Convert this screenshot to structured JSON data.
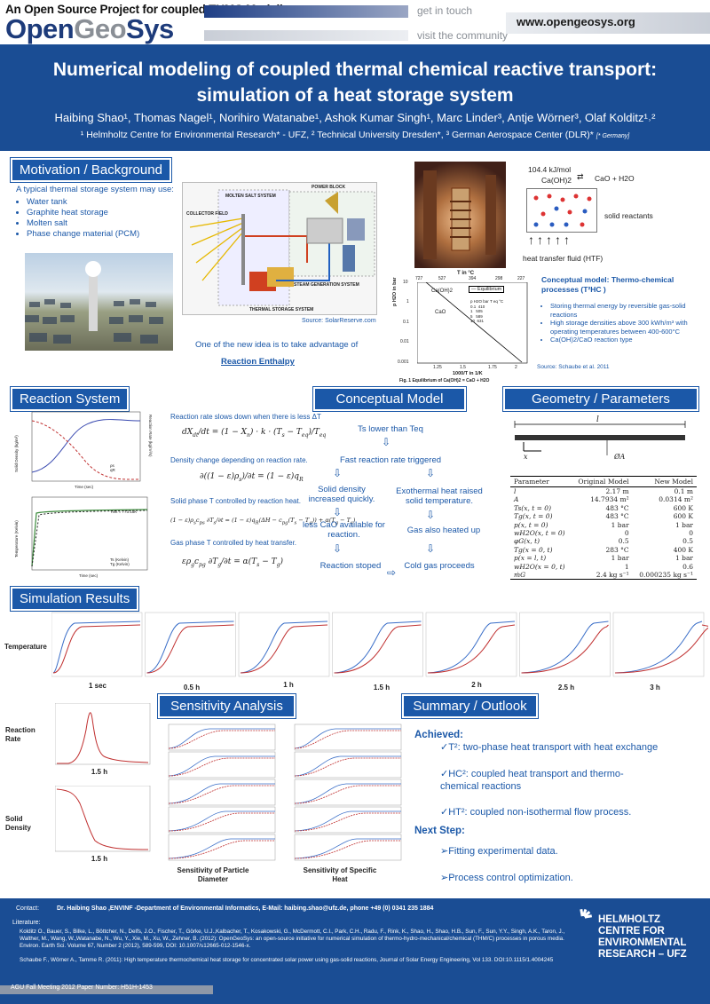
{
  "header": {
    "project": "An Open Source Project for coupled THMC Modeling",
    "logo_open": "Open",
    "logo_geo": "Geo",
    "logo_sys": "Sys",
    "get_in_touch": "get in touch",
    "visit": "visit the community",
    "url": "www.opengeosys.org"
  },
  "title": {
    "line1": "Numerical modeling of coupled thermal chemical reactive transport:",
    "line2": "simulation of  a heat storage system"
  },
  "authors": "Haibing Shao¹, Thomas Nagel¹, Norihiro Watanabe¹, Ashok Kumar Singh¹, Marc Linder³, Antje Wörner³, Olaf Kolditz¹˒²",
  "affiliations": "¹ Helmholtz Centre for Environmental Research* - UFZ, ² Technical University Dresden*, ³ German Aerospace Center (DLR)*",
  "affiliations_note": "[* Germany]",
  "motivation": {
    "heading": "Motivation / Background",
    "intro": "A typical thermal storage system may use:",
    "items": [
      "Water tank",
      "Graphite heat storage",
      "Molten salt",
      "Phase change material (PCM)"
    ],
    "source": "Source: SolarReserve.com",
    "idea": "One of the new idea is to take advantage of",
    "idea_bold": "Reaction Enthalpy",
    "diagram_labels": {
      "molten": "MOLTEN SALT SYSTEM",
      "power": "POWER BLOCK",
      "collector": "COLLECTOR FIELD",
      "storage": "THERMAL STORAGE SYSTEM",
      "steam": "STEAM GENERATION SYSTEM"
    }
  },
  "reaction_box": {
    "energy": "104.4 kJ/mol",
    "reactant": "Ca(OH)2",
    "product": "CaO + H2O",
    "solid": "solid reactants",
    "htf": "heat transfer fluid (HTF)"
  },
  "equilibrium": {
    "top_axis": "T in °C",
    "top_ticks": [
      "727",
      "527",
      "394",
      "298",
      "227"
    ],
    "left_axis": "p H2O in bar",
    "ylabels": [
      "10",
      "1",
      "0.1",
      "0.01",
      "0.001"
    ],
    "xlabels": [
      "1.25",
      "1.5",
      "1.75",
      "2"
    ],
    "xaxis": "1000/T in 1/K",
    "caoh": "Ca(OH)2",
    "cao": "CaO",
    "legend": "Equilibrium",
    "tbl_head": [
      "p H2O bar",
      "T eq °C"
    ],
    "tbl": [
      [
        "0.1",
        "410"
      ],
      [
        "1",
        "505"
      ],
      [
        "5",
        "589"
      ],
      [
        "10",
        "631"
      ]
    ],
    "caption": "Fig. 1   Equilibrium of Ca(OH)2 = CaO + H2O"
  },
  "tcm": {
    "heading": "Conceptual model: Thermo-chemical processes (T²HC )",
    "bullets": [
      "Storing thermal energy by reversible gas-solid reactions",
      "High storage densities above 300 kWh/m³ with operating temperatures between 400-600°C",
      "Ca(OH)2/CaO reaction type"
    ],
    "source": "Source: Schaube et al. 2011"
  },
  "reaction": {
    "heading": "Reaction System",
    "t1": "Reaction rate slows down when there is less ΔT",
    "t2": "Density change depending on reaction rate.",
    "t3": "Solid phase T controlled by reaction heat.",
    "t4": "Gas phase T controlled by heat transfer.",
    "plot1_legend": [
      "ρs",
      "qR"
    ],
    "plot2_legend": [
      "Ts (Kelvin)",
      "Tg (Kelvin)"
    ],
    "plot2_note": "Tinit = 773.15K",
    "axis_time": "Time (sec)",
    "axis1_left": "Solid Density (kg/m³)",
    "axis1_right": "Reaction Rate (kg/m³/s)",
    "axis2_left": "Temperature (Kelvin)"
  },
  "concept": {
    "heading": "Conceptual Model",
    "n1": "Ts lower than Teq",
    "n2": "Fast reaction rate triggered",
    "n3": "Solid density increased quickly.",
    "n4": "Exothermal heat raised solid temperature.",
    "n5": "less CaO available for reaction.",
    "n6": "Gas also heated up",
    "n7": "Reaction stoped",
    "n8": "Cold gas proceeds"
  },
  "geometry": {
    "heading": "Geometry / Parameters",
    "l": "l",
    "x": "x",
    "dia": "ØA",
    "table_head": [
      "Parameter",
      "Original Model",
      "New Model"
    ],
    "rows": [
      [
        "l",
        "2.17 m",
        "0.1 m"
      ],
      [
        "A",
        "14.7934 m²",
        "0.0314 m²"
      ],
      [
        "Ts(x, t = 0)",
        "483 °C",
        "600 K"
      ],
      [
        "Tg(x, t = 0)",
        "483 °C",
        "600 K"
      ],
      [
        "p(x, t = 0)",
        "1 bar",
        "1 bar"
      ],
      [
        "wH2O(x, t = 0)",
        "0",
        "0"
      ],
      [
        "φG(x, t)",
        "0.5",
        "0.5"
      ],
      [
        "Tg(x = 0, t)",
        "283 °C",
        "400 K"
      ],
      [
        "p(x = l, t)",
        "1 bar",
        "1 bar"
      ],
      [
        "wH2O(x = 0, t)",
        "1",
        "0.6"
      ],
      [
        "ṁG",
        "2.4 kg s⁻¹",
        "0.000235 kg s⁻¹"
      ]
    ]
  },
  "simulation": {
    "heading": "Simulation Results",
    "row_label": "Temperature",
    "times": [
      "1 sec",
      "0.5 h",
      "1 h",
      "1.5 h",
      "2 h",
      "2.5 h",
      "3 h"
    ],
    "rate_label": "Reaction Rate",
    "density_label": "Solid Density",
    "rate_time": "1.5 h",
    "density_time": "1.5 h"
  },
  "sensitivity": {
    "heading": "Sensitivity Analysis",
    "cap1": "Sensitivity of Particle Diameter",
    "cap2": "Sensitivity of Specific Heat"
  },
  "summary": {
    "heading": "Summary / Outlook",
    "achieved": "Achieved:",
    "a1": "✓T²: two-phase heat transport with heat exchange",
    "a2": "✓HC²: coupled heat transport and thermo-chemical reactions",
    "a3": "✓HT²: coupled non-isothermal flow process.",
    "next": "Next Step:",
    "n1": "➢Fitting experimental data.",
    "n2": "➢Process control optimization."
  },
  "footer": {
    "contact_label": "Contact:",
    "contact": "Dr. Haibing Shao ,ENVINF -Department of Environmental Informatics, E-Mail:  haibing.shao@ufz.de, phone +49 (0) 0341 235 1884",
    "lit_label": "Literature:",
    "lit1": "Kolditz O., Bauer, S., Bilke, L., Böttcher, N., Delfs, J.O., Fischer, T., Görke, U.J.,Kalbacher, T., Kosakowski, G., McDermott, C.I., Park, C.H., Radu, F., Rink, K., Shao, H., Shao, H.B., Sun, F., Sun, Y.Y., Singh, A.K., Taron, J., Walther, M., Wang, W.,Watanabe, N., Wu, Y., Xie, M., Xu, W., Zehner, B. (2012): OpenGeoSys: an open-source initiative for numerical simulation of thermo-hydro-mechanical/chemical (THM/C) processes in porous media. Environ. Earth Sci. Volume 67, Number 2 (2012), 589-599, DOI: 10.1007/s12665-012-1546-x.",
    "lit2": "Schaube F., Wörner A., Tamme R. (2011): High temperature thermochemical heat storage for concentrated solar power using gas-solid reactions, Journal of Solar Energy Engineering, Vol 133. DOI:10.1115/1.4004245",
    "helmholtz": [
      "HELMHOLTZ",
      "CENTRE FOR",
      "ENVIRONMENTAL",
      "RESEARCH – UFZ"
    ],
    "meeting": "AGU Fall Meeting  2012 Paper Number: H51H-1453"
  }
}
